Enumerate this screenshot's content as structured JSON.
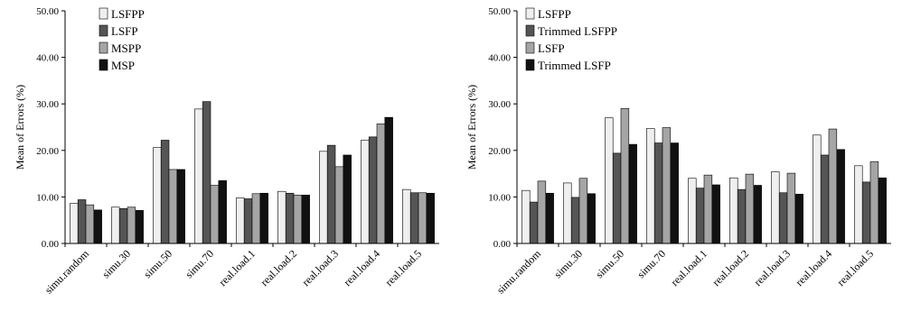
{
  "colors": {
    "series_fills": [
      "#efefef",
      "#555555",
      "#a5a5a5",
      "#111111"
    ],
    "bar_stroke": "#000000"
  },
  "chart_data": [
    {
      "type": "bar",
      "title": "",
      "xlabel": "",
      "ylabel": "Mean of Errors (%)",
      "ylim": [
        0,
        50
      ],
      "yticks": [
        "0.00",
        "10.00",
        "20.00",
        "30.00",
        "40.00",
        "50.00"
      ],
      "grid": false,
      "legend_position": "top-left",
      "categories": [
        "simu.random",
        "simu.30",
        "simu.50",
        "simu.70",
        "real.load.1",
        "real.load.2",
        "real.load.3",
        "real.load.4",
        "real.load.5"
      ],
      "series": [
        {
          "name": "LSFPP",
          "values": [
            8.6,
            7.8,
            20.6,
            28.9,
            9.8,
            11.2,
            19.8,
            22.2,
            11.6
          ]
        },
        {
          "name": "LSFP",
          "values": [
            9.4,
            7.5,
            22.2,
            30.5,
            9.6,
            10.8,
            21.1,
            22.9,
            10.9
          ]
        },
        {
          "name": "MSPP",
          "values": [
            8.3,
            7.8,
            15.9,
            12.5,
            10.7,
            10.4,
            16.5,
            25.7,
            10.9
          ]
        },
        {
          "name": "MSP",
          "values": [
            7.2,
            7.1,
            15.9,
            13.5,
            10.8,
            10.4,
            19.0,
            27.1,
            10.8
          ]
        }
      ]
    },
    {
      "type": "bar",
      "title": "",
      "xlabel": "",
      "ylabel": "Mean of Errors (%)",
      "ylim": [
        0,
        50
      ],
      "yticks": [
        "0.00",
        "10.00",
        "20.00",
        "30.00",
        "40.00",
        "50.00"
      ],
      "grid": false,
      "legend_position": "top-left",
      "categories": [
        "simu.random",
        "simu.30",
        "simu.50",
        "simu.70",
        "real.load.1",
        "real.load.2",
        "real.load.3",
        "real.load.4",
        "real.load.5"
      ],
      "series": [
        {
          "name": "LSFPP",
          "values": [
            11.4,
            13.0,
            27.0,
            24.7,
            14.0,
            14.1,
            15.4,
            23.3,
            16.7
          ]
        },
        {
          "name": "Trimmed LSFPP",
          "values": [
            8.9,
            9.9,
            19.4,
            21.6,
            11.9,
            11.6,
            10.9,
            19.0,
            13.2
          ]
        },
        {
          "name": "LSFP",
          "values": [
            13.4,
            14.0,
            29.0,
            24.9,
            14.7,
            14.9,
            15.1,
            24.6,
            17.6
          ]
        },
        {
          "name": "Trimmed LSFP",
          "values": [
            10.8,
            10.7,
            21.3,
            21.6,
            12.6,
            12.5,
            10.6,
            20.2,
            14.1
          ]
        }
      ]
    }
  ]
}
